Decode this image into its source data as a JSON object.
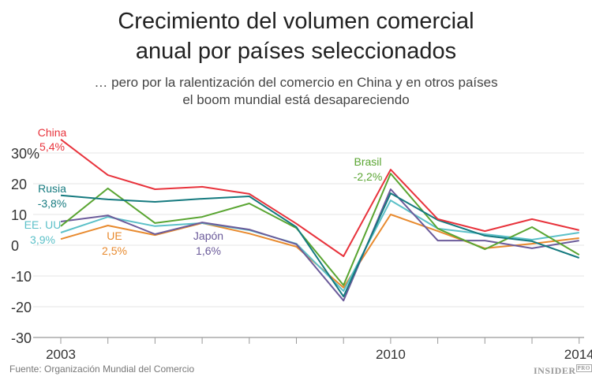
{
  "chart_data": {
    "type": "line",
    "title_lines": [
      "Crecimiento del volumen comercial",
      "anual por países seleccionados"
    ],
    "subtitle_lines": [
      "… pero por la ralentización del comercio en China y en otros países",
      "el boom mundial está desapareciendo"
    ],
    "x": [
      2003,
      2004,
      2005,
      2006,
      2007,
      2008,
      2009,
      2010,
      2011,
      2012,
      2013,
      2014
    ],
    "x_tick_labels": [
      {
        "x": 2003,
        "label": "2003"
      },
      {
        "x": 2010,
        "label": "2010"
      },
      {
        "x": 2014,
        "label": "2014"
      }
    ],
    "ylim": [
      -30,
      35
    ],
    "y_ticks": [
      {
        "v": 30,
        "label": "30%"
      },
      {
        "v": 20,
        "label": "20"
      },
      {
        "v": 10,
        "label": "10"
      },
      {
        "v": 0,
        "label": "0"
      },
      {
        "v": -10,
        "label": "-10"
      },
      {
        "v": -20,
        "label": "-20"
      },
      {
        "v": -30,
        "label": "-30"
      }
    ],
    "grid": true,
    "series": [
      {
        "name": "China",
        "annotation": "5,4%",
        "color": "#e8333c",
        "values": [
          34.4,
          22.8,
          18.2,
          19,
          16.7,
          7,
          -3.6,
          24.6,
          8.5,
          4.6,
          8.5,
          4.9
        ]
      },
      {
        "name": "Rusia",
        "annotation": "-3,8%",
        "color": "#157a7f",
        "values": [
          16.2,
          14.9,
          14.1,
          15.1,
          15.9,
          5.9,
          -16.7,
          16.9,
          8.2,
          3.1,
          1.3,
          -4.1
        ]
      },
      {
        "name": "Brasil",
        "annotation": "-2,2%",
        "color": "#5aa532",
        "values": [
          6.2,
          18.5,
          7.2,
          9.2,
          13.6,
          5.6,
          -13,
          23.3,
          5.4,
          -1.3,
          5.9,
          -3.1
        ]
      },
      {
        "name": "EE. UU",
        "annotation": "3,9%",
        "color": "#5bc0c8",
        "values": [
          4.1,
          9.2,
          6.2,
          7.2,
          4.9,
          0.5,
          -14.9,
          14.6,
          5.4,
          3.6,
          1.8,
          4.1
        ]
      },
      {
        "name": "UE",
        "annotation": "2,5%",
        "color": "#e88a2e",
        "values": [
          2,
          6.4,
          3.3,
          7.2,
          3.8,
          -0.5,
          -13.8,
          10,
          4.6,
          -1,
          0.5,
          2.3
        ]
      },
      {
        "name": "Japón",
        "annotation": "1,6%",
        "color": "#6b5b9a",
        "values": [
          7.7,
          9.7,
          3.6,
          7.4,
          5.1,
          0.3,
          -18,
          18.2,
          1.5,
          1.5,
          -1,
          1.5
        ]
      }
    ],
    "source": "Fuente: Organización Mundial del Comercio",
    "logo_text": "INSIDER",
    "logo_badge": "PRO"
  }
}
